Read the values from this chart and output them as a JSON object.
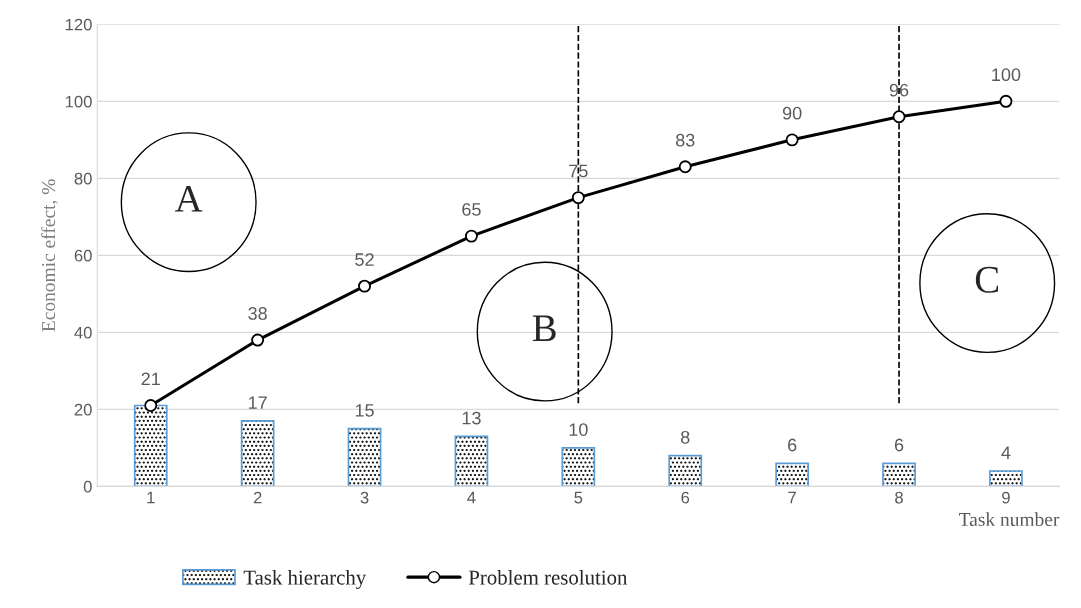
{
  "chart_data": {
    "type": "bar",
    "xlabel": "Task number",
    "ylabel": "Economic effect, %",
    "categories": [
      "1",
      "2",
      "3",
      "4",
      "5",
      "6",
      "7",
      "8",
      "9"
    ],
    "series": [
      {
        "name": "Task hierarchy",
        "color": "#5b9bd5",
        "values": [
          21,
          17,
          15,
          13,
          10,
          8,
          6,
          6,
          4
        ],
        "value_labels": [
          null,
          "17",
          "15",
          "13",
          "10",
          "8",
          "6",
          "6",
          "4"
        ]
      },
      {
        "name": "Problem resolution",
        "type": "line",
        "color": "#000000",
        "marker": "circle",
        "values": [
          21,
          38,
          52,
          65,
          75,
          83,
          90,
          96,
          100
        ],
        "value_labels": [
          "21",
          "38",
          "52",
          "65",
          "75",
          "83",
          "90",
          "96",
          "100"
        ]
      }
    ],
    "ylim": [
      0,
      120
    ],
    "yticks": [
      0,
      20,
      40,
      60,
      80,
      100,
      120
    ],
    "grid": "y",
    "legend": "bottom",
    "ref_lines": [
      {
        "axis": "x",
        "value": "5",
        "line_style": "dashed",
        "color": "#000000"
      },
      {
        "axis": "x",
        "value": "8",
        "line_style": "dashed",
        "color": "#000000"
      }
    ],
    "annotations": [
      "A",
      "B",
      "C"
    ]
  }
}
